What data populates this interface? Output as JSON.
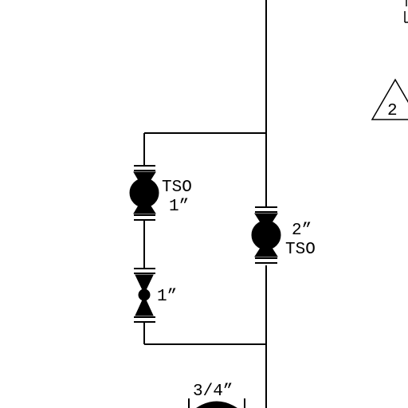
{
  "labels": {
    "tso_upper_tag": "TSO",
    "tso_upper_size": "1”",
    "valve_small_size": "1”",
    "main_size": "2”",
    "main_tag": "TSO",
    "bottom_size": "3/4”",
    "revision_number": "2"
  },
  "icons": [
    "ball-valve-icon",
    "globe-valve-icon",
    "revision-triangle-icon"
  ]
}
